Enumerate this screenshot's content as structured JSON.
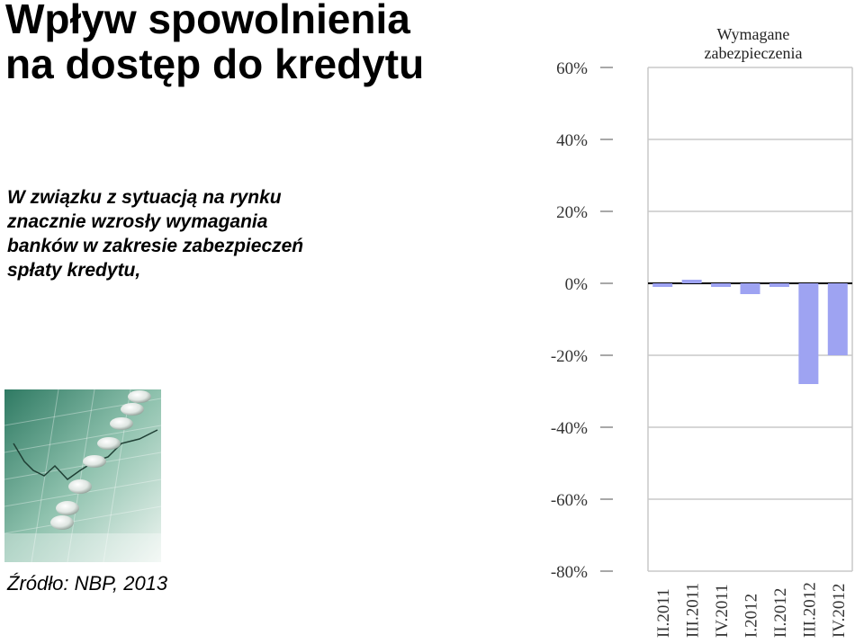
{
  "slide": {
    "title_line1": "Wpływ spowolnienia",
    "title_line2": "na dostęp do kredytu",
    "description": "W związku z sytuacją na rynku znacznie wzrosły wymagania banków w zakresie zabezpieczeń spłaty kredytu,",
    "source": "Źródło: NBP, 2013",
    "photo_icon": "coins-on-growth-chart-image"
  },
  "chart_data": {
    "type": "bar",
    "title": "Wymagane zabezpieczenia",
    "categories": [
      "II.2011",
      "III.2011",
      "IV.2011",
      "I.2012",
      "II.2012",
      "III.2012",
      "IV.2012"
    ],
    "values": [
      -1,
      1,
      -1,
      -3,
      -1,
      -28,
      -20
    ],
    "ylim": [
      -80,
      60
    ],
    "yticks": [
      60,
      40,
      20,
      0,
      -20,
      -40,
      -60,
      -80
    ],
    "ytick_labels": [
      "60%",
      "40%",
      "20%",
      "0%",
      "-20%",
      "-40%",
      "-60%",
      "-80%"
    ],
    "grid": true,
    "bar_color": "#9ea3f2"
  }
}
